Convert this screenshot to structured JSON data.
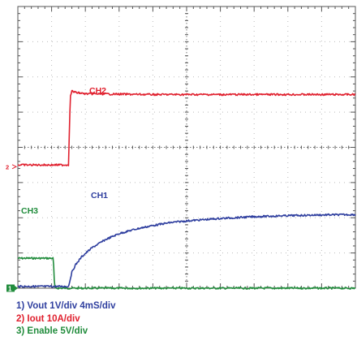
{
  "chart_data": {
    "type": "line",
    "title": "",
    "xlabel": "",
    "ylabel": "",
    "divisions": {
      "x": 10,
      "y": 8
    },
    "grid": "dotted graticule",
    "background": "#ffffff",
    "series": [
      {
        "name": "CH1",
        "color": "#2f3f9f",
        "x_div": [
          0,
          1.5,
          1.55,
          1.6,
          1.7,
          1.9,
          2.2,
          2.6,
          3.0,
          3.5,
          4.0,
          4.5,
          5.0,
          6.0,
          7.0,
          8.0,
          9.0,
          10.0
        ],
        "y_div": [
          0.05,
          0.05,
          0.25,
          0.45,
          0.65,
          0.9,
          1.15,
          1.38,
          1.55,
          1.68,
          1.78,
          1.86,
          1.91,
          1.98,
          2.03,
          2.06,
          2.08,
          2.09
        ]
      },
      {
        "name": "CH2",
        "color": "#e0202e",
        "x_div": [
          0,
          1.5,
          1.52,
          1.54,
          1.56,
          1.6,
          1.7,
          2.0,
          4.0,
          7.0,
          10.0
        ],
        "y_div": [
          3.5,
          3.5,
          4.2,
          5.0,
          5.45,
          5.6,
          5.56,
          5.52,
          5.5,
          5.5,
          5.5
        ]
      },
      {
        "name": "CH3",
        "color": "#218c3c",
        "x_div": [
          0,
          1.05,
          1.07,
          1.09,
          10.0
        ],
        "y_div": [
          0.85,
          0.85,
          0.45,
          0.0,
          0.0
        ]
      }
    ],
    "channel_markers": [
      {
        "text": "2",
        "y_div": 3.45
      },
      {
        "text": "1",
        "y_div": 0.0
      }
    ],
    "legend": [
      "1) Vout 1V/div 4mS/div",
      "2) Iout 10A/div",
      "3) Enable 5V/div"
    ]
  }
}
